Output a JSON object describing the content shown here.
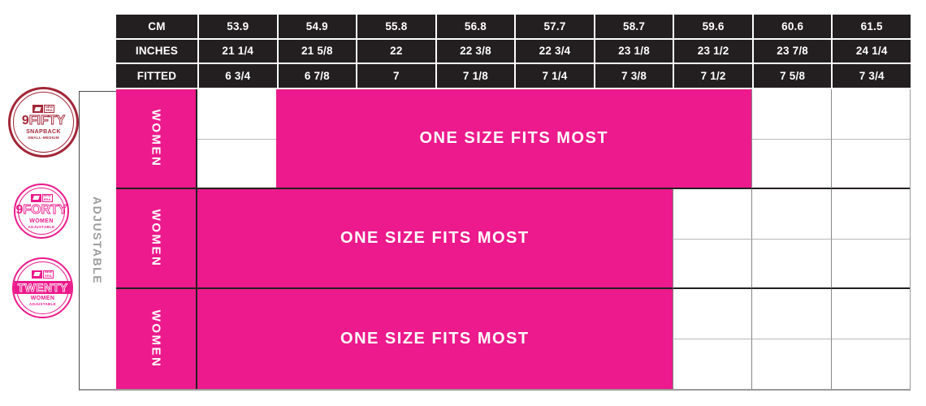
{
  "colors": {
    "pink": "#ec1a8c",
    "header_bg": "#231f20",
    "crimson": "#a32638",
    "grid_gray": "#9a9a9a"
  },
  "header": {
    "rows": [
      {
        "label": "CM",
        "values": [
          "53.9",
          "54.9",
          "55.8",
          "56.8",
          "57.7",
          "58.7",
          "59.6",
          "60.6",
          "61.5"
        ]
      },
      {
        "label": "INCHES",
        "values": [
          "21 1/4",
          "21 5/8",
          "22",
          "22 3/8",
          "22 3/4",
          "23 1/8",
          "23 1/2",
          "23 7/8",
          "24 1/4"
        ]
      },
      {
        "label": "FITTED",
        "values": [
          "6 3/4",
          "6 7/8",
          "7",
          "7 1/8",
          "7 1/4",
          "7 3/8",
          "7 1/2",
          "7 5/8",
          "7 3/4"
        ]
      }
    ]
  },
  "side_label": "ADJUSTABLE",
  "rows": [
    {
      "label": "WOMEN",
      "band": "ONE SIZE FITS MOST"
    },
    {
      "label": "WOMEN",
      "band": "ONE SIZE FITS MOST"
    },
    {
      "label": "WOMEN",
      "band": "ONE SIZE FITS MOST"
    }
  ],
  "badges": [
    {
      "prefix": "9",
      "word": "FIFTY",
      "sub": "SNAPBACK",
      "tiny": "SMALL-MEDIUM",
      "logo": "NEW ERA"
    },
    {
      "prefix": "9",
      "word": "FORTY",
      "sub": "WOMEN",
      "tiny": "ADJUSTABLE",
      "logo": "NEW ERA"
    },
    {
      "prefix": "",
      "word": "TWENTY",
      "sub": "WOMEN",
      "tiny": "ADJUSTABLE",
      "logo": "NEW ERA"
    }
  ],
  "chart_data": {
    "type": "table",
    "title": "New Era women's cap size chart",
    "columns": {
      "cm": [
        "53.9",
        "54.9",
        "55.8",
        "56.8",
        "57.7",
        "58.7",
        "59.6",
        "60.6",
        "61.5"
      ],
      "inches": [
        "21 1/4",
        "21 5/8",
        "22",
        "22 3/8",
        "22 3/4",
        "23 1/8",
        "23 1/2",
        "23 7/8",
        "24 1/4"
      ],
      "fitted": [
        "6 3/4",
        "6 7/8",
        "7",
        "7 1/8",
        "7 1/4",
        "7 3/8",
        "7 1/2",
        "7 5/8",
        "7 3/4"
      ]
    },
    "side_label": "ADJUSTABLE",
    "rows": [
      {
        "product": "9FIFTY SNAPBACK SMALL-MEDIUM",
        "fit": "WOMEN",
        "band": "ONE SIZE FITS MOST",
        "covers_fitted": [
          "6 7/8",
          "7",
          "7 1/8",
          "7 1/4",
          "7 3/8",
          "7 1/2"
        ]
      },
      {
        "product": "9FORTY WOMEN ADJUSTABLE",
        "fit": "WOMEN",
        "band": "ONE SIZE FITS MOST",
        "covers_fitted": [
          "6 3/4",
          "6 7/8",
          "7",
          "7 1/8",
          "7 1/4",
          "7 3/8"
        ]
      },
      {
        "product": "TWENTY WOMEN ADJUSTABLE",
        "fit": "WOMEN",
        "band": "ONE SIZE FITS MOST",
        "covers_fitted": [
          "6 3/4",
          "6 7/8",
          "7",
          "7 1/8",
          "7 1/4",
          "7 3/8"
        ]
      }
    ]
  }
}
